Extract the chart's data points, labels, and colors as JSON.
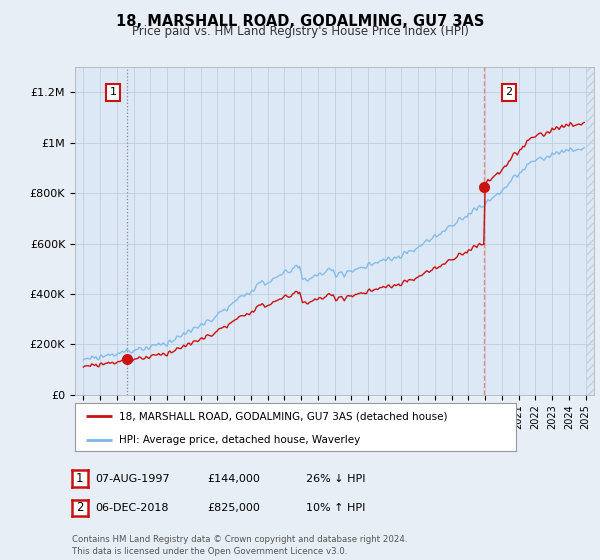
{
  "title": "18, MARSHALL ROAD, GODALMING, GU7 3AS",
  "subtitle": "Price paid vs. HM Land Registry's House Price Index (HPI)",
  "ylabel_ticks": [
    "£0",
    "£200K",
    "£400K",
    "£600K",
    "£800K",
    "£1M",
    "£1.2M"
  ],
  "ytick_vals": [
    0,
    200000,
    400000,
    600000,
    800000,
    1000000,
    1200000
  ],
  "ylim": [
    0,
    1300000
  ],
  "xlim_start": 1994.5,
  "xlim_end": 2025.5,
  "hpi_color": "#7ab8e8",
  "price_color": "#cc1111",
  "vline1_color": "#888888",
  "vline1_style": ":",
  "vline2_color": "#ee8888",
  "vline2_style": "--",
  "sale1_year": 1997.583,
  "sale1_price": 144000,
  "sale2_year": 2018.917,
  "sale2_price": 825000,
  "legend_label_price": "18, MARSHALL ROAD, GODALMING, GU7 3AS (detached house)",
  "legend_label_hpi": "HPI: Average price, detached house, Waverley",
  "footnote2": "Contains HM Land Registry data © Crown copyright and database right 2024.\nThis data is licensed under the Open Government Licence v3.0.",
  "bg_color": "#e8eef5",
  "plot_bg_color": "#dce8f5",
  "grid_color": "#b8ccdc",
  "hatch_color": "#c0d0e0"
}
